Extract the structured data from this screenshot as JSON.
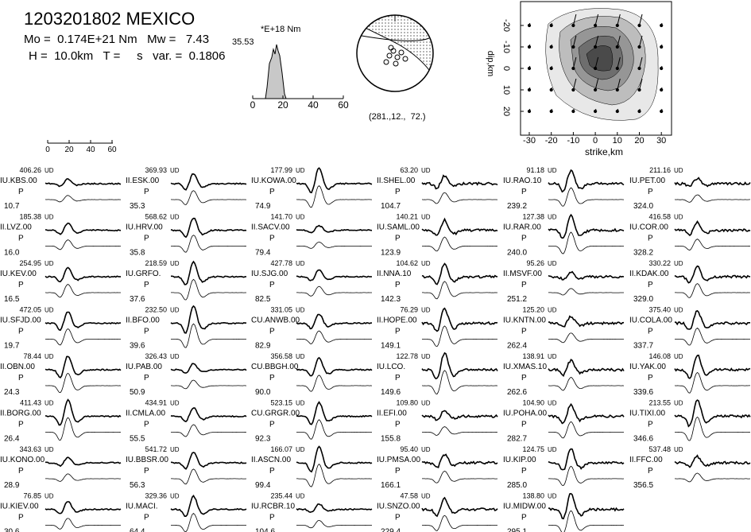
{
  "header": {
    "event": "1203201802 MEXICO",
    "line1": "Mo =  0.174E+21 Nm   Mw =   7.43",
    "line2": "H =  10.0km   T =     s   var. =  0.1806"
  },
  "stf": {
    "unit": "*E+18 Nm",
    "peak": "35.53",
    "xticks": [
      "0",
      "20",
      "40",
      "60"
    ]
  },
  "mechanism": {
    "label": "(281.,12.,  72.)"
  },
  "slip_map": {
    "ylabel": "dip,km",
    "yticks": [
      "-20",
      "-10",
      "0",
      "10",
      "20"
    ],
    "xlabel": "strike,km",
    "xticks": [
      "-30",
      "-20",
      "-10",
      "0",
      "10",
      "20",
      "30"
    ]
  },
  "scale_bar": {
    "ticks": [
      "0",
      "20",
      "40",
      "60"
    ]
  },
  "stations": [
    [
      "406.26",
      "UD",
      "IU.KBS.00",
      "P",
      "10.7"
    ],
    [
      "185.38",
      "UD",
      "II.LVZ.00",
      "P",
      "16.0"
    ],
    [
      "254.95",
      "UD",
      "IU.KEV.00",
      "P",
      "16.5"
    ],
    [
      "472.05",
      "UD",
      "IU.SFJD.00",
      "P",
      "19.7"
    ],
    [
      "78.44",
      "UD",
      "II.OBN.00",
      "P",
      "24.3"
    ],
    [
      "411.43",
      "UD",
      "II.BORG.00",
      "P",
      "26.4"
    ],
    [
      "343.63",
      "UD",
      "IU.KONO.00",
      "P",
      "28.9"
    ],
    [
      "76.85",
      "UD",
      "IU.KIEV.00",
      "P",
      "30.6"
    ],
    [
      "369.93",
      "UD",
      "II.ESK.00",
      "P",
      "35.3"
    ],
    [
      "568.62",
      "UD",
      "IU.HRV.00",
      "P",
      "35.8"
    ],
    [
      "218.59",
      "UD",
      "IU.GRFO.",
      "P",
      "37.6"
    ],
    [
      "232.50",
      "UD",
      "II.BFO.00",
      "P",
      "39.6"
    ],
    [
      "326.43",
      "UD",
      "IU.PAB.00",
      "P",
      "50.9"
    ],
    [
      "434.91",
      "UD",
      "II.CMLA.00",
      "P",
      "55.5"
    ],
    [
      "541.72",
      "UD",
      "IU.BBSR.00",
      "P",
      "56.3"
    ],
    [
      "329.36",
      "UD",
      "IU.MACI.",
      "P",
      "64.4"
    ],
    [
      "177.99",
      "UD",
      "IU.KOWA.00",
      "P",
      "74.9"
    ],
    [
      "141.70",
      "UD",
      "II.SACV.00",
      "P",
      "79.4"
    ],
    [
      "427.78",
      "UD",
      "IU.SJG.00",
      "P",
      "82.5"
    ],
    [
      "331.05",
      "UD",
      "CU.ANWB.00",
      "P",
      "82.9"
    ],
    [
      "356.58",
      "UD",
      "CU.BBGH.00",
      "P",
      "90.0"
    ],
    [
      "523.15",
      "UD",
      "CU.GRGR.00",
      "P",
      "92.3"
    ],
    [
      "166.07",
      "UD",
      "II.ASCN.00",
      "P",
      "99.4"
    ],
    [
      "235.44",
      "UD",
      "IU.RCBR.10",
      "P",
      "104.6"
    ],
    [
      "63.20",
      "UD",
      "II.SHEL.00",
      "P",
      "104.7"
    ],
    [
      "140.21",
      "UD",
      "IU.SAML.00",
      "P",
      "123.9"
    ],
    [
      "104.62",
      "UD",
      "II.NNA.10",
      "P",
      "142.3"
    ],
    [
      "76.29",
      "UD",
      "II.HOPE.00",
      "P",
      "149.1"
    ],
    [
      "122.78",
      "UD",
      "IU.LCO.",
      "P",
      "149.6"
    ],
    [
      "109.80",
      "UD",
      "II.EFI.00",
      "P",
      "155.8"
    ],
    [
      "95.40",
      "UD",
      "IU.PMSA.00",
      "P",
      "166.1"
    ],
    [
      "47.58",
      "UD",
      "IU.SNZO.00",
      "P",
      "229.4"
    ],
    [
      "91.18",
      "UD",
      "IU.RAO.10",
      "P",
      "239.2"
    ],
    [
      "127.38",
      "UD",
      "IU.RAR.00",
      "P",
      "240.0"
    ],
    [
      "95.26",
      "UD",
      "II.MSVF.00",
      "P",
      "251.2"
    ],
    [
      "125.20",
      "UD",
      "IU.KNTN.00",
      "P",
      "262.4"
    ],
    [
      "138.91",
      "UD",
      "IU.XMAS.10",
      "P",
      "262.6"
    ],
    [
      "104.90",
      "UD",
      "IU.POHA.00",
      "P",
      "282.7"
    ],
    [
      "124.75",
      "UD",
      "IU.KIP.00",
      "P",
      "285.0"
    ],
    [
      "138.80",
      "UD",
      "IU.MIDW.00",
      "P",
      "295.1"
    ],
    [
      "211.16",
      "UD",
      "IU.PET.00",
      "P",
      "324.0"
    ],
    [
      "416.58",
      "UD",
      "IU.COR.00",
      "P",
      "328.2"
    ],
    [
      "330.22",
      "UD",
      "II.KDAK.00",
      "P",
      "329.0"
    ],
    [
      "375.40",
      "UD",
      "IU.COLA.00",
      "P",
      "337.7"
    ],
    [
      "146.08",
      "UD",
      "IU.YAK.00",
      "P",
      "339.6"
    ],
    [
      "213.55",
      "UD",
      "IU.TIXI.00",
      "P",
      "346.6"
    ],
    [
      "537.48",
      "UD",
      "II.FFC.00",
      "P",
      "356.5"
    ]
  ]
}
